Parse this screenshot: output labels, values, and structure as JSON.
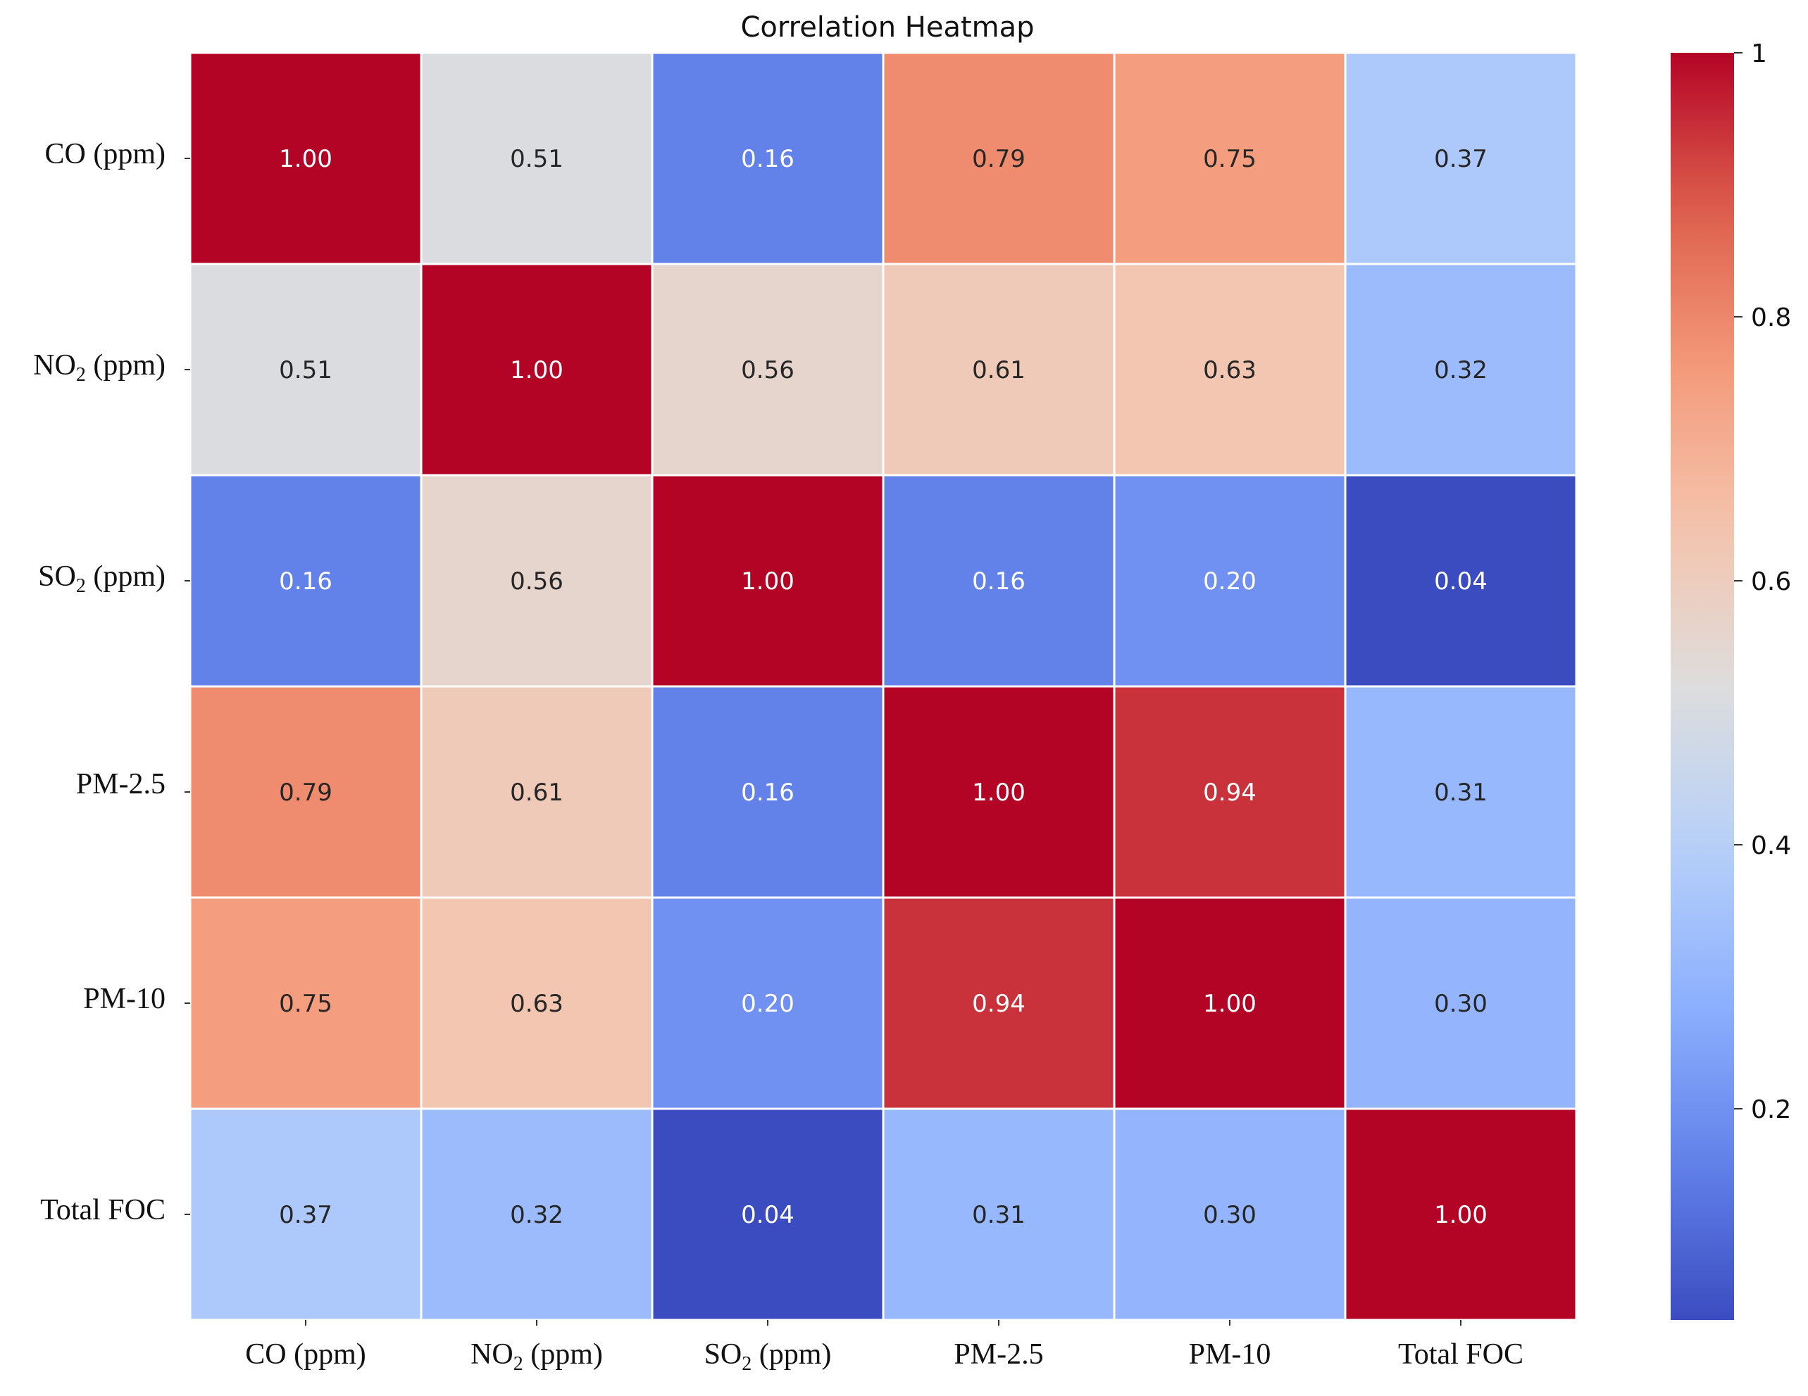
{
  "chart_data": {
    "type": "heatmap",
    "title": "Correlation Heatmap",
    "row_labels": [
      {
        "main": "CO",
        "sub": "",
        "unit": " (ppm)"
      },
      {
        "main": "NO",
        "sub": "2",
        "unit": " (ppm)"
      },
      {
        "main": "SO",
        "sub": "2",
        "unit": " (ppm)"
      },
      {
        "main": "PM-2.5",
        "sub": "",
        "unit": ""
      },
      {
        "main": "PM-10",
        "sub": "",
        "unit": ""
      },
      {
        "main": "Total FOC",
        "sub": "",
        "unit": ""
      }
    ],
    "col_labels": [
      {
        "main": "CO",
        "sub": "",
        "unit": " (ppm)"
      },
      {
        "main": "NO",
        "sub": "2",
        "unit": " (ppm)"
      },
      {
        "main": "SO",
        "sub": "2",
        "unit": " (ppm)"
      },
      {
        "main": "PM-2.5",
        "sub": "",
        "unit": ""
      },
      {
        "main": "PM-10",
        "sub": "",
        "unit": ""
      },
      {
        "main": "Total FOC",
        "sub": "",
        "unit": ""
      }
    ],
    "values": [
      [
        1.0,
        0.51,
        0.16,
        0.79,
        0.75,
        0.37
      ],
      [
        0.51,
        1.0,
        0.56,
        0.61,
        0.63,
        0.32
      ],
      [
        0.16,
        0.56,
        1.0,
        0.16,
        0.2,
        0.04
      ],
      [
        0.79,
        0.61,
        0.16,
        1.0,
        0.94,
        0.31
      ],
      [
        0.75,
        0.63,
        0.2,
        0.94,
        1.0,
        0.3
      ],
      [
        0.37,
        0.32,
        0.04,
        0.31,
        0.3,
        1.0
      ]
    ],
    "value_format": "0.00",
    "colormap": "coolwarm",
    "vmin": 0.04,
    "vmax": 1.0,
    "colorbar": {
      "ticks": [
        0.2,
        0.4,
        0.6,
        0.8,
        1
      ],
      "tick_labels": [
        "0.2",
        "0.4",
        "0.6",
        "0.8",
        "1"
      ]
    },
    "gridline_color": "#ffffff"
  }
}
